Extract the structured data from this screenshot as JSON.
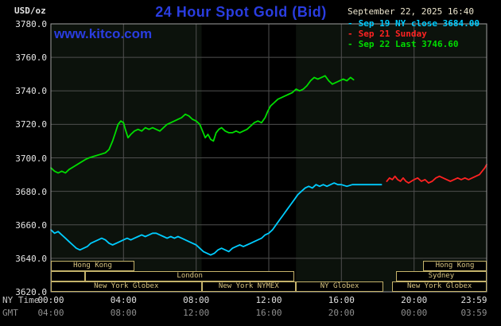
{
  "header": {
    "unit": "USD/oz",
    "title": "24 Hour Spot Gold (Bid)",
    "datetime": "September 22, 2025 16:40",
    "watermark": "www.kitco.com"
  },
  "legend": {
    "items": [
      {
        "dash": "-",
        "label": "Sep 19 NY close 3684.00",
        "color": "#00ccff"
      },
      {
        "dash": "-",
        "label": "Sep 21 Sunday",
        "color": "#ff2222"
      },
      {
        "dash": "-",
        "label": "Sep 22 Last 3746.60",
        "color": "#00dd00"
      }
    ]
  },
  "axes": {
    "ny_caption": "NY Time",
    "gmt_caption": "GMT"
  },
  "chart_data": {
    "type": "line",
    "title": "24 Hour Spot Gold (Bid)",
    "xlabel": "NY Time",
    "ylabel": "USD/oz",
    "xlim": [
      0,
      24
    ],
    "ylim": [
      3620,
      3780
    ],
    "grid": true,
    "legend_position": "top-right",
    "plot_bg": "#0c120c",
    "band": {
      "name": "New York NYMEX session",
      "start": 8.3,
      "end": 13.5,
      "color": "#000000"
    },
    "y_ticks": [
      {
        "value": 3780,
        "label": "3780.0"
      },
      {
        "value": 3760,
        "label": "3760.0"
      },
      {
        "value": 3740,
        "label": "3740.0"
      },
      {
        "value": 3720,
        "label": "3720.0"
      },
      {
        "value": 3700,
        "label": "3700.0"
      },
      {
        "value": 3680,
        "label": "3680.0"
      },
      {
        "value": 3660,
        "label": "3660.0"
      },
      {
        "value": 3640,
        "label": "3640.0"
      },
      {
        "value": 3620,
        "label": "3620.0"
      }
    ],
    "x_ticks": [
      {
        "hour": 0,
        "ny": "00:00",
        "gmt": "04:00"
      },
      {
        "hour": 4,
        "ny": "04:00",
        "gmt": "08:00"
      },
      {
        "hour": 8,
        "ny": "08:00",
        "gmt": "12:00"
      },
      {
        "hour": 12,
        "ny": "12:00",
        "gmt": "16:00"
      },
      {
        "hour": 16,
        "ny": "16:00",
        "gmt": "20:00"
      },
      {
        "hour": 20,
        "ny": "20:00",
        "gmt": "00:00"
      },
      {
        "hour": 23.98,
        "ny": "23:59",
        "gmt": "03:59"
      }
    ],
    "series": [
      {
        "name": "Sep 19 NY close",
        "color": "#00ccff",
        "close": 3684.0,
        "points": [
          [
            0,
            3657
          ],
          [
            0.2,
            3655
          ],
          [
            0.4,
            3656
          ],
          [
            0.6,
            3654
          ],
          [
            0.8,
            3652
          ],
          [
            1,
            3650
          ],
          [
            1.2,
            3648
          ],
          [
            1.4,
            3646
          ],
          [
            1.6,
            3645
          ],
          [
            1.8,
            3646
          ],
          [
            2,
            3647
          ],
          [
            2.2,
            3649
          ],
          [
            2.4,
            3650
          ],
          [
            2.6,
            3651
          ],
          [
            2.8,
            3652
          ],
          [
            3,
            3651
          ],
          [
            3.2,
            3649
          ],
          [
            3.4,
            3648
          ],
          [
            3.6,
            3649
          ],
          [
            3.8,
            3650
          ],
          [
            4,
            3651
          ],
          [
            4.2,
            3652
          ],
          [
            4.4,
            3651
          ],
          [
            4.6,
            3652
          ],
          [
            4.8,
            3653
          ],
          [
            5,
            3654
          ],
          [
            5.2,
            3653
          ],
          [
            5.4,
            3654
          ],
          [
            5.6,
            3655
          ],
          [
            5.8,
            3655
          ],
          [
            6,
            3654
          ],
          [
            6.2,
            3653
          ],
          [
            6.4,
            3652
          ],
          [
            6.6,
            3653
          ],
          [
            6.8,
            3652
          ],
          [
            7,
            3653
          ],
          [
            7.2,
            3652
          ],
          [
            7.4,
            3651
          ],
          [
            7.6,
            3650
          ],
          [
            7.8,
            3649
          ],
          [
            8,
            3648
          ],
          [
            8.2,
            3646
          ],
          [
            8.4,
            3644
          ],
          [
            8.6,
            3643
          ],
          [
            8.8,
            3642
          ],
          [
            9,
            3643
          ],
          [
            9.2,
            3645
          ],
          [
            9.4,
            3646
          ],
          [
            9.6,
            3645
          ],
          [
            9.8,
            3644
          ],
          [
            10,
            3646
          ],
          [
            10.2,
            3647
          ],
          [
            10.4,
            3648
          ],
          [
            10.6,
            3647
          ],
          [
            10.8,
            3648
          ],
          [
            11,
            3649
          ],
          [
            11.2,
            3650
          ],
          [
            11.4,
            3651
          ],
          [
            11.6,
            3652
          ],
          [
            11.8,
            3654
          ],
          [
            12,
            3655
          ],
          [
            12.2,
            3657
          ],
          [
            12.4,
            3660
          ],
          [
            12.6,
            3663
          ],
          [
            12.8,
            3666
          ],
          [
            13,
            3669
          ],
          [
            13.2,
            3672
          ],
          [
            13.4,
            3675
          ],
          [
            13.6,
            3678
          ],
          [
            13.8,
            3680
          ],
          [
            14,
            3682
          ],
          [
            14.2,
            3683
          ],
          [
            14.4,
            3682
          ],
          [
            14.6,
            3684
          ],
          [
            14.8,
            3683
          ],
          [
            15,
            3684
          ],
          [
            15.2,
            3683
          ],
          [
            15.4,
            3684
          ],
          [
            15.6,
            3685
          ],
          [
            15.8,
            3684
          ],
          [
            16,
            3684
          ],
          [
            16.3,
            3683
          ],
          [
            16.6,
            3684
          ],
          [
            16.9,
            3684
          ],
          [
            17.2,
            3684
          ],
          [
            17.5,
            3684
          ],
          [
            17.8,
            3684
          ],
          [
            18,
            3684
          ],
          [
            18.2,
            3684
          ]
        ]
      },
      {
        "name": "Sep 21 Sunday",
        "color": "#ff2222",
        "points": [
          [
            18.5,
            3686
          ],
          [
            18.65,
            3688
          ],
          [
            18.8,
            3687
          ],
          [
            18.95,
            3689
          ],
          [
            19.1,
            3687
          ],
          [
            19.25,
            3686
          ],
          [
            19.4,
            3688
          ],
          [
            19.55,
            3686
          ],
          [
            19.7,
            3685
          ],
          [
            19.85,
            3686
          ],
          [
            20,
            3687
          ],
          [
            20.2,
            3688
          ],
          [
            20.4,
            3686
          ],
          [
            20.6,
            3687
          ],
          [
            20.8,
            3685
          ],
          [
            21,
            3686
          ],
          [
            21.2,
            3688
          ],
          [
            21.4,
            3689
          ],
          [
            21.6,
            3688
          ],
          [
            21.8,
            3687
          ],
          [
            22,
            3686
          ],
          [
            22.2,
            3687
          ],
          [
            22.4,
            3688
          ],
          [
            22.6,
            3687
          ],
          [
            22.8,
            3688
          ],
          [
            23,
            3687
          ],
          [
            23.2,
            3688
          ],
          [
            23.4,
            3689
          ],
          [
            23.6,
            3690
          ],
          [
            23.75,
            3692
          ],
          [
            23.9,
            3694
          ],
          [
            24,
            3696
          ]
        ]
      },
      {
        "name": "Sep 22 Last",
        "color": "#00dd00",
        "last": 3746.6,
        "points": [
          [
            0,
            3694
          ],
          [
            0.2,
            3692
          ],
          [
            0.4,
            3691
          ],
          [
            0.6,
            3692
          ],
          [
            0.8,
            3691
          ],
          [
            1,
            3693
          ],
          [
            1.3,
            3695
          ],
          [
            1.6,
            3697
          ],
          [
            1.9,
            3699
          ],
          [
            2.1,
            3700
          ],
          [
            2.4,
            3701
          ],
          [
            2.7,
            3702
          ],
          [
            3,
            3703
          ],
          [
            3.2,
            3705
          ],
          [
            3.4,
            3710
          ],
          [
            3.55,
            3715
          ],
          [
            3.7,
            3720
          ],
          [
            3.85,
            3722
          ],
          [
            4,
            3721
          ],
          [
            4.1,
            3717
          ],
          [
            4.25,
            3712
          ],
          [
            4.4,
            3714
          ],
          [
            4.6,
            3716
          ],
          [
            4.8,
            3717
          ],
          [
            5,
            3716
          ],
          [
            5.2,
            3718
          ],
          [
            5.4,
            3717
          ],
          [
            5.6,
            3718
          ],
          [
            5.8,
            3717
          ],
          [
            6,
            3716
          ],
          [
            6.2,
            3718
          ],
          [
            6.4,
            3720
          ],
          [
            6.6,
            3721
          ],
          [
            6.8,
            3722
          ],
          [
            7,
            3723
          ],
          [
            7.2,
            3724
          ],
          [
            7.4,
            3726
          ],
          [
            7.6,
            3725
          ],
          [
            7.8,
            3723
          ],
          [
            8,
            3722
          ],
          [
            8.2,
            3720
          ],
          [
            8.35,
            3716
          ],
          [
            8.5,
            3712
          ],
          [
            8.65,
            3714
          ],
          [
            8.8,
            3711
          ],
          [
            8.95,
            3710
          ],
          [
            9.1,
            3715
          ],
          [
            9.25,
            3717
          ],
          [
            9.4,
            3718
          ],
          [
            9.6,
            3716
          ],
          [
            9.8,
            3715
          ],
          [
            10,
            3715
          ],
          [
            10.2,
            3716
          ],
          [
            10.4,
            3715
          ],
          [
            10.6,
            3716
          ],
          [
            10.8,
            3717
          ],
          [
            11,
            3719
          ],
          [
            11.2,
            3721
          ],
          [
            11.4,
            3722
          ],
          [
            11.6,
            3721
          ],
          [
            11.8,
            3724
          ],
          [
            11.95,
            3728
          ],
          [
            12.1,
            3731
          ],
          [
            12.3,
            3733
          ],
          [
            12.5,
            3735
          ],
          [
            12.7,
            3736
          ],
          [
            12.9,
            3737
          ],
          [
            13.1,
            3738
          ],
          [
            13.3,
            3739
          ],
          [
            13.5,
            3741
          ],
          [
            13.7,
            3740
          ],
          [
            13.9,
            3741
          ],
          [
            14.1,
            3743
          ],
          [
            14.3,
            3746
          ],
          [
            14.5,
            3748
          ],
          [
            14.7,
            3747
          ],
          [
            14.9,
            3748
          ],
          [
            15.1,
            3749
          ],
          [
            15.3,
            3746
          ],
          [
            15.5,
            3744
          ],
          [
            15.7,
            3745
          ],
          [
            15.9,
            3746
          ],
          [
            16.1,
            3747
          ],
          [
            16.3,
            3746
          ],
          [
            16.5,
            3748
          ],
          [
            16.67,
            3746.6
          ]
        ]
      }
    ],
    "sessions": [
      {
        "label": "Hong Kong",
        "row": 1,
        "start": 0,
        "end": 4.6
      },
      {
        "label": "Hong Kong",
        "row": 1,
        "start": 20.5,
        "end": 24
      },
      {
        "label": "",
        "row": 2,
        "start": 0,
        "end": 1.9
      },
      {
        "label": "London",
        "row": 2,
        "start": 1.9,
        "end": 13.4
      },
      {
        "label": "Sydney",
        "row": 2,
        "start": 19,
        "end": 24
      },
      {
        "label": "New York Globex",
        "row": 3,
        "start": 0,
        "end": 8.3
      },
      {
        "label": "New York NYMEX",
        "row": 3,
        "start": 8.3,
        "end": 13.5
      },
      {
        "label": "NY Globex",
        "row": 3,
        "start": 13.5,
        "end": 18.3
      },
      {
        "label": "New York Globex",
        "row": 3,
        "start": 18.8,
        "end": 24
      }
    ]
  }
}
